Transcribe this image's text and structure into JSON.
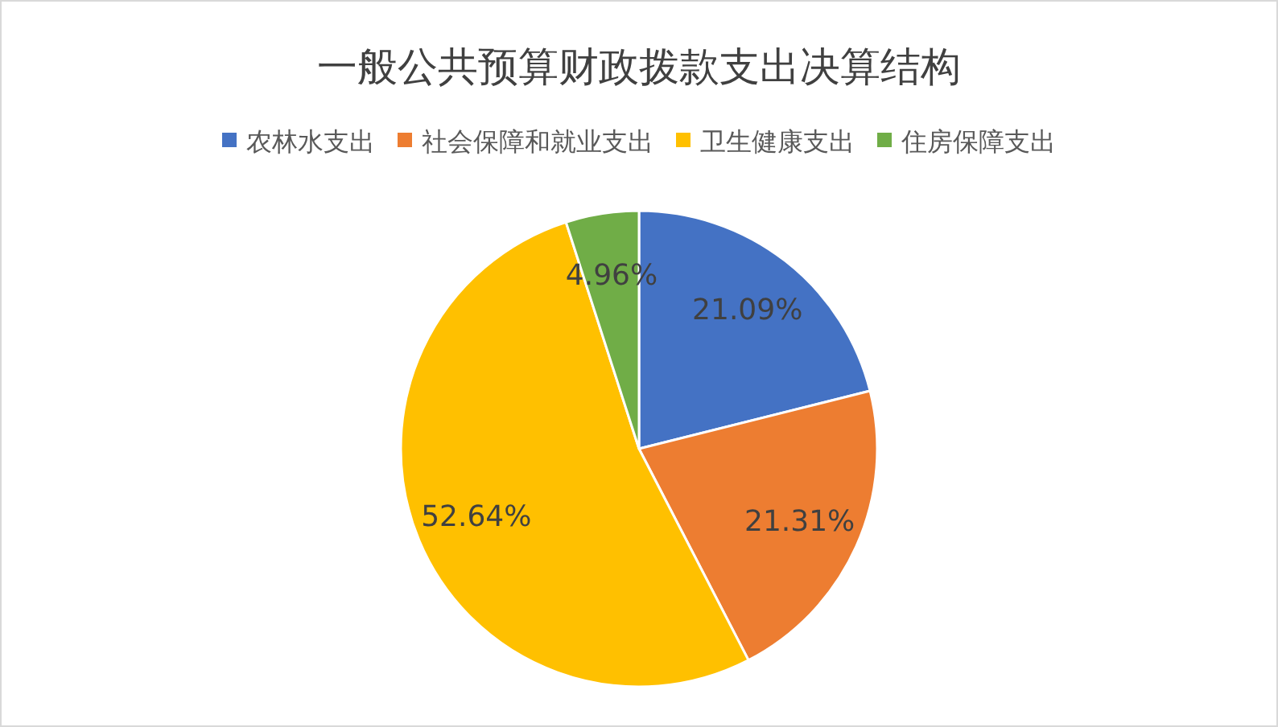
{
  "chart_data": {
    "type": "pie",
    "title": "一般公共预算财政拨款支出决算结构",
    "categories": [
      "农林水支出",
      "社会保障和就业支出",
      "卫生健康支出",
      "住房保障支出"
    ],
    "values": [
      21.09,
      21.31,
      52.64,
      4.96
    ],
    "colors": [
      "#4472c4",
      "#ed7d31",
      "#ffc000",
      "#70ad47"
    ],
    "value_labels": [
      "21.09%",
      "21.31%",
      "52.64%",
      "4.96%"
    ],
    "legend": "top"
  }
}
